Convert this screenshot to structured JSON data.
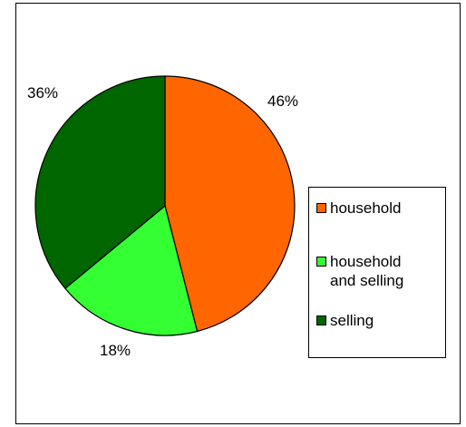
{
  "chart_data": {
    "type": "pie",
    "title": "",
    "categories": [
      "household",
      "household\nand selling",
      "selling"
    ],
    "values": [
      46,
      18,
      36
    ],
    "labels": [
      "46%",
      "18%",
      "36%"
    ],
    "colors": [
      "#ff6600",
      "#33ff33",
      "#006600"
    ],
    "legend_position": "right"
  }
}
